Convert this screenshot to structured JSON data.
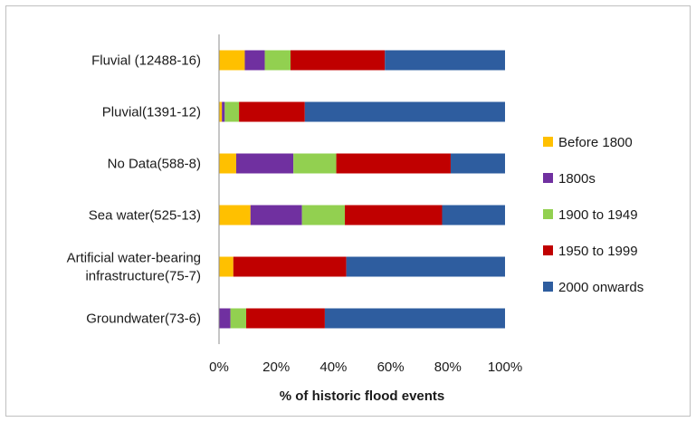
{
  "chart_data": {
    "type": "bar",
    "orientation": "horizontal",
    "stacked": true,
    "xlabel": "% of historic flood events",
    "xlim": [
      0,
      100
    ],
    "x_ticks": [
      "0%",
      "20%",
      "40%",
      "60%",
      "80%",
      "100%"
    ],
    "grid": false,
    "legend_position": "right",
    "categories": [
      [
        "Fluvial (12488-16)"
      ],
      [
        "Pluvial(1391-12)"
      ],
      [
        "No Data(588-8)"
      ],
      [
        "Sea water(525-13)"
      ],
      [
        "Artificial water-bearing",
        "infrastructure(75-7)"
      ],
      [
        "Groundwater(73-6)"
      ]
    ],
    "series": [
      {
        "name": "Before 1800",
        "color": "#FFC000",
        "values": [
          9,
          1,
          6,
          11,
          5,
          0
        ]
      },
      {
        "name": "1800s",
        "color": "#7030A0",
        "values": [
          7,
          1,
          20,
          18,
          0,
          4
        ]
      },
      {
        "name": "1900 to 1949",
        "color": "#92D050",
        "values": [
          9,
          5,
          15,
          15,
          0,
          5.5
        ]
      },
      {
        "name": "1950 to 1999",
        "color": "#C00000",
        "values": [
          33,
          23,
          40,
          34,
          39.5,
          27.5
        ]
      },
      {
        "name": "2000 onwards",
        "color": "#2E5D9F",
        "values": [
          42,
          70,
          19,
          22,
          55.5,
          63
        ]
      }
    ]
  }
}
